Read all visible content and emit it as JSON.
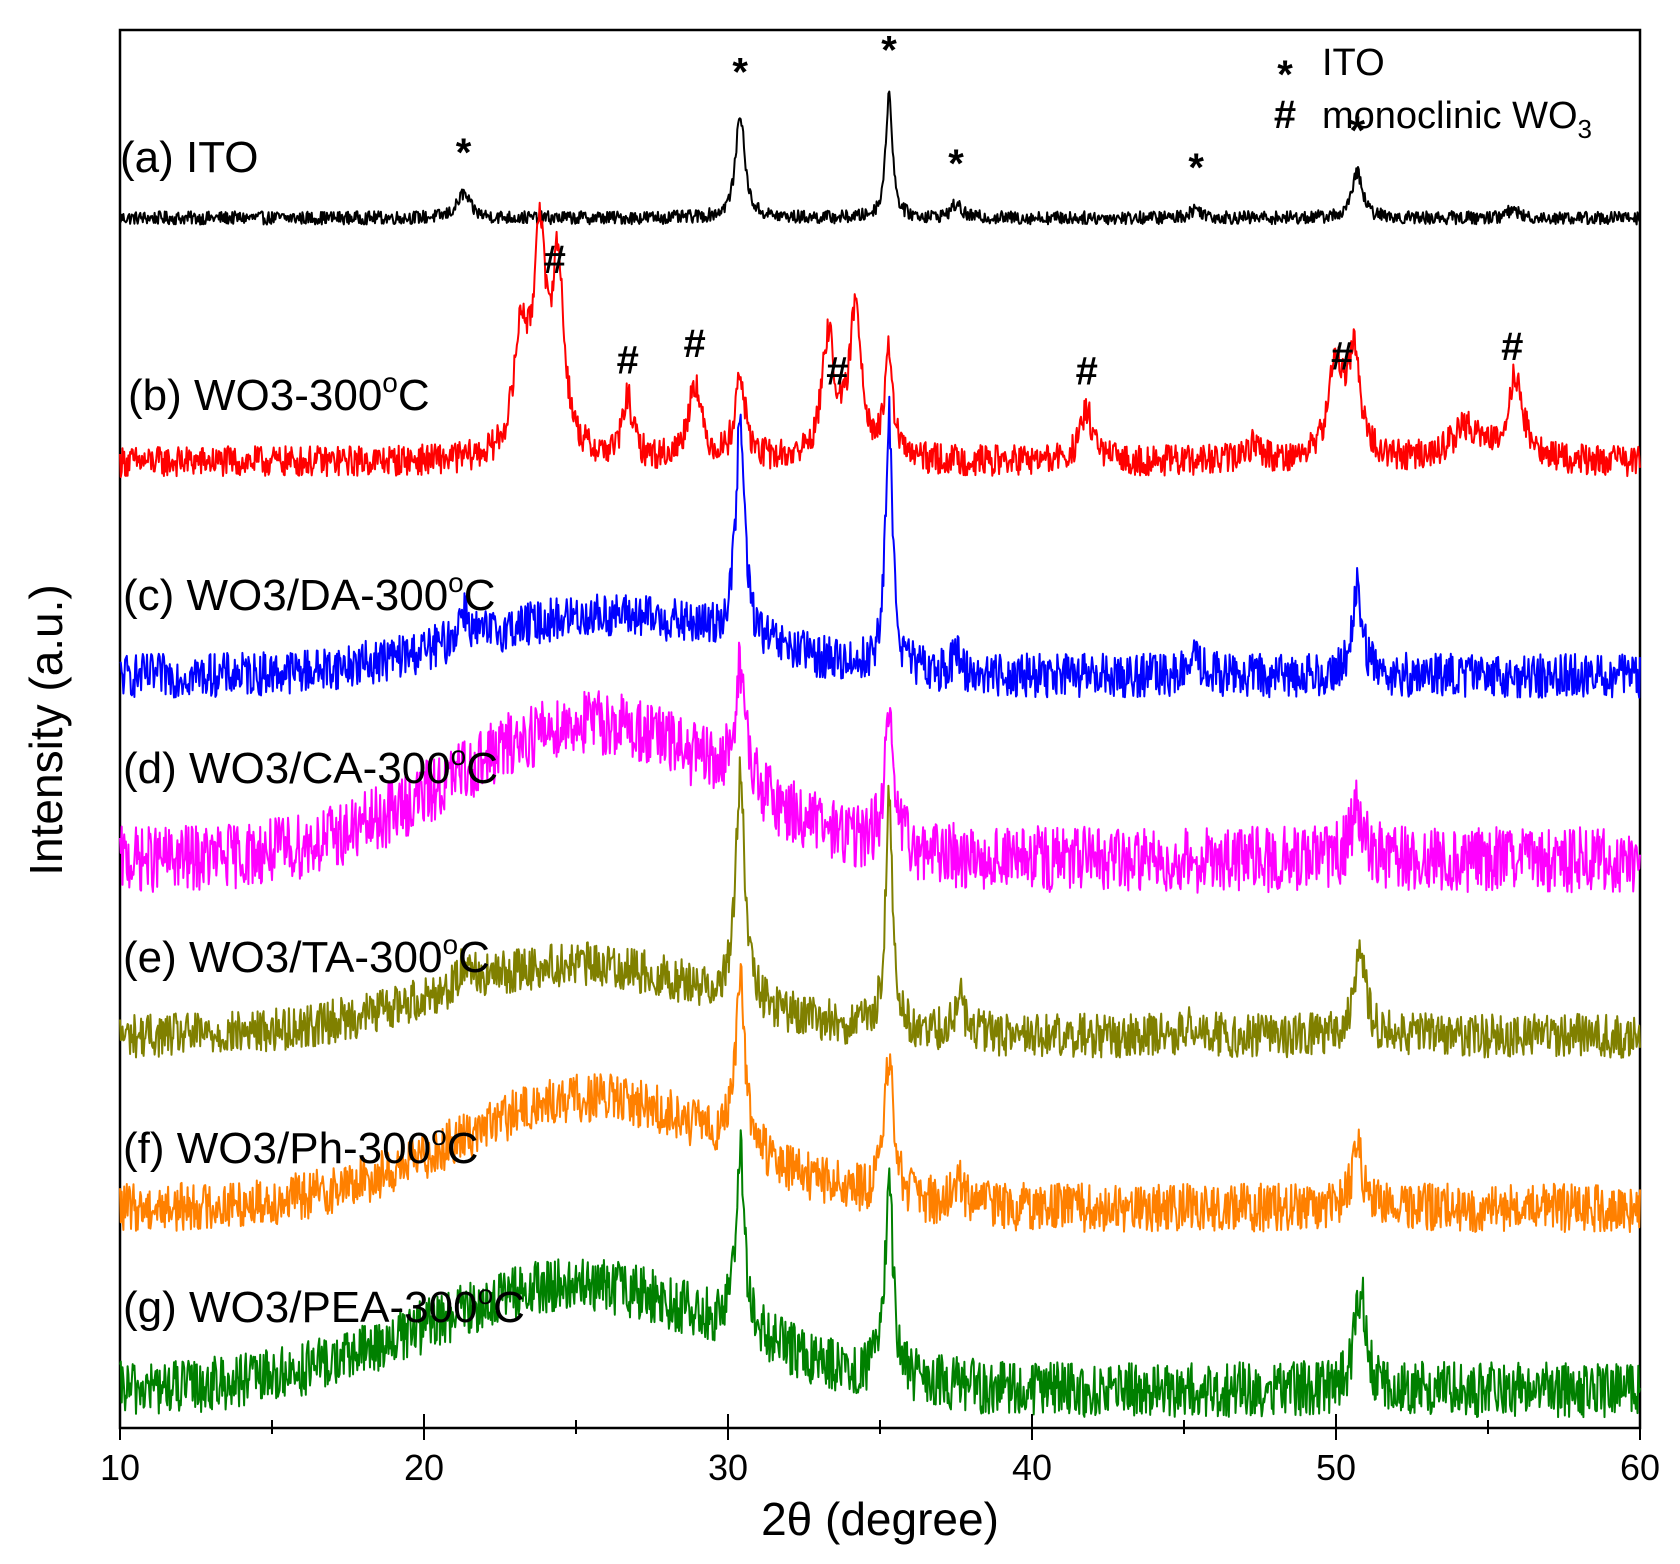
{
  "chart_data": {
    "type": "line",
    "title": "",
    "xlabel": "2θ (degree)",
    "ylabel": "Intensity (a.u.)",
    "xlim": [
      10,
      60
    ],
    "xticks": [
      10,
      20,
      30,
      40,
      50,
      60
    ],
    "xtick_labels": [
      "10",
      "20",
      "30",
      "40",
      "50",
      "60"
    ],
    "yticks_shown": false,
    "legend": {
      "position": "top-right",
      "items": [
        {
          "symbol": "*",
          "label": "ITO"
        },
        {
          "symbol": "#",
          "label": "monoclinic WO",
          "subscript": "3"
        }
      ]
    },
    "series": [
      {
        "id": "a",
        "name": "(a) ITO",
        "label_prefix": "(a)",
        "label_main": "ITO",
        "color": "#000000",
        "baseline": 0.0,
        "noise": 0.06,
        "hump": null,
        "peaks": [
          [
            21.3,
            0.22,
            0.25
          ],
          [
            30.4,
            0.95,
            0.18
          ],
          [
            35.3,
            1.15,
            0.13
          ],
          [
            37.5,
            0.12,
            0.2
          ],
          [
            45.4,
            0.08,
            0.25
          ],
          [
            50.7,
            0.42,
            0.2
          ],
          [
            55.8,
            0.08,
            0.2
          ]
        ]
      },
      {
        "id": "b",
        "name": "(b) WO3-300°C",
        "label_prefix": "(b)",
        "label_main": "WO3-300",
        "label_sup": "o",
        "label_end": "C",
        "color": "#ff0000",
        "baseline": 0.0,
        "noise": 0.14,
        "hump": null,
        "peaks": [
          [
            23.2,
            1.1,
            0.28
          ],
          [
            23.8,
            1.9,
            0.22
          ],
          [
            24.4,
            1.7,
            0.25
          ],
          [
            26.7,
            0.55,
            0.2
          ],
          [
            28.9,
            0.7,
            0.25
          ],
          [
            30.4,
            0.75,
            0.2
          ],
          [
            33.3,
            1.1,
            0.25
          ],
          [
            34.2,
            1.35,
            0.25
          ],
          [
            35.3,
            0.95,
            0.15
          ],
          [
            41.8,
            0.45,
            0.25
          ],
          [
            47.3,
            0.15,
            0.3
          ],
          [
            50.0,
            0.85,
            0.3
          ],
          [
            50.6,
            0.9,
            0.25
          ],
          [
            54.3,
            0.3,
            0.6
          ],
          [
            55.9,
            0.75,
            0.3
          ]
        ]
      },
      {
        "id": "c",
        "name": "(c) WO3/DA-300°C",
        "label_prefix": "(c)",
        "label_main": "WO3/DA-300",
        "label_sup": "o",
        "label_end": "C",
        "color": "#0000ff",
        "baseline": 0.0,
        "noise": 0.2,
        "hump": [
          26.0,
          0.55,
          4.5
        ],
        "peaks": [
          [
            21.3,
            0.3,
            0.2
          ],
          [
            30.4,
            1.95,
            0.18
          ],
          [
            35.3,
            2.3,
            0.14
          ],
          [
            37.5,
            0.15,
            0.2
          ],
          [
            45.4,
            0.15,
            0.25
          ],
          [
            50.7,
            0.8,
            0.2
          ]
        ]
      },
      {
        "id": "d",
        "name": "(d) WO3/CA-300°C",
        "label_prefix": "(d)",
        "label_main": "WO3/CA-300",
        "label_sup": "o",
        "label_end": "C",
        "color": "#ff00ff",
        "baseline": 0.0,
        "noise": 0.3,
        "hump": [
          25.5,
          1.25,
          4.5
        ],
        "peaks": [
          [
            30.4,
            1.1,
            0.2
          ],
          [
            35.3,
            1.05,
            0.2
          ],
          [
            50.7,
            0.5,
            0.25
          ]
        ]
      },
      {
        "id": "e",
        "name": "(e) WO3/TA-300°C",
        "label_prefix": "(e)",
        "label_main": "WO3/TA-300",
        "label_sup": "o",
        "label_end": "C",
        "color": "#808000",
        "baseline": 0.0,
        "noise": 0.2,
        "hump": [
          25.0,
          0.65,
          4.5
        ],
        "peaks": [
          [
            21.4,
            0.25,
            0.2
          ],
          [
            30.4,
            2.05,
            0.18
          ],
          [
            35.3,
            2.1,
            0.14
          ],
          [
            37.6,
            0.35,
            0.2
          ],
          [
            45.4,
            0.12,
            0.25
          ],
          [
            50.8,
            0.8,
            0.2
          ]
        ]
      },
      {
        "id": "f",
        "name": "(f) WO3/Ph-300°C",
        "label_prefix": "(f)",
        "label_main": "WO3/Ph-300",
        "label_sup": "o",
        "label_end": "C",
        "color": "#ff8000",
        "baseline": 0.0,
        "noise": 0.22,
        "hump": [
          25.5,
          1.0,
          4.5
        ],
        "peaks": [
          [
            30.4,
            1.6,
            0.18
          ],
          [
            35.3,
            1.3,
            0.18
          ],
          [
            37.6,
            0.2,
            0.2
          ],
          [
            50.7,
            0.6,
            0.2
          ]
        ]
      },
      {
        "id": "g",
        "name": "(g) WO3/PEA-300°C",
        "label_prefix": "(g)",
        "label_main": "WO3/PEA-300",
        "label_sup": "o",
        "label_end": "C",
        "color": "#008000",
        "baseline": 0.0,
        "noise": 0.25,
        "hump": [
          25.0,
          0.95,
          5.0
        ],
        "peaks": [
          [
            30.4,
            1.6,
            0.18
          ],
          [
            35.3,
            1.75,
            0.16
          ],
          [
            50.8,
            0.9,
            0.22
          ]
        ]
      }
    ],
    "annotations": [
      {
        "symbol": "*",
        "x": 21.3,
        "series": "a"
      },
      {
        "symbol": "*",
        "x": 30.4,
        "series": "a"
      },
      {
        "symbol": "*",
        "x": 35.3,
        "series": "a"
      },
      {
        "symbol": "*",
        "x": 37.5,
        "series": "a"
      },
      {
        "symbol": "*",
        "x": 45.4,
        "series": "a"
      },
      {
        "symbol": "*",
        "x": 50.7,
        "series": "a"
      },
      {
        "symbol": "#",
        "x": 24.3,
        "series": "b"
      },
      {
        "symbol": "#",
        "x": 26.7,
        "series": "b"
      },
      {
        "symbol": "#",
        "x": 28.9,
        "series": "b"
      },
      {
        "symbol": "#",
        "x": 33.6,
        "series": "b"
      },
      {
        "symbol": "#",
        "x": 41.8,
        "series": "b"
      },
      {
        "symbol": "#",
        "x": 50.2,
        "series": "b"
      },
      {
        "symbol": "#",
        "x": 55.8,
        "series": "b"
      }
    ]
  }
}
